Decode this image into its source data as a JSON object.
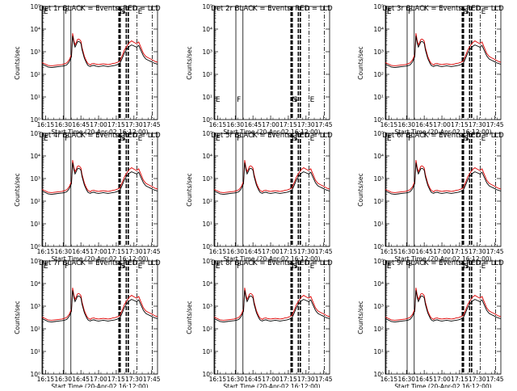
{
  "chart_data": {
    "type": "line",
    "panels": [
      {
        "title": "Det 1r BLACK = Events, RED = LLD",
        "shows_data": true
      },
      {
        "title": "Det 2r BLACK = Events, RED = LLD",
        "shows_data": false
      },
      {
        "title": "Det 3r BLACK = Events, RED = LLD",
        "shows_data": true
      },
      {
        "title": "Det 4r BLACK = Events, RED = LLD",
        "shows_data": true
      },
      {
        "title": "Det 5r BLACK = Events, RED = LLD",
        "shows_data": true
      },
      {
        "title": "Det 6r BLACK = Events, RED = LLD",
        "shows_data": true
      },
      {
        "title": "Det 7r BLACK = Events, RED = LLD",
        "shows_data": true
      },
      {
        "title": "Det 8r BLACK = Events, RED = LLD",
        "shows_data": true
      },
      {
        "title": "Det 9r BLACK = Events, RED = LLD",
        "shows_data": true
      }
    ],
    "xlabel": "Start Time (20-Apr-02 16:12:00)",
    "ylabel": "Counts/sec",
    "x_unit": "minutes after 16:12",
    "xlim": [
      0,
      98
    ],
    "x_ticks": [
      {
        "label": "16:15",
        "t": 3
      },
      {
        "label": "16:30",
        "t": 18
      },
      {
        "label": "16:45",
        "t": 33
      },
      {
        "label": "17:00",
        "t": 48
      },
      {
        "label": "17:15",
        "t": 63
      },
      {
        "label": "17:30",
        "t": 78
      },
      {
        "label": "17:45",
        "t": 93
      }
    ],
    "y_scale": "log",
    "ylim": [
      1,
      100000
    ],
    "y_ticks": [
      {
        "label": "10⁰",
        "v": 1
      },
      {
        "label": "10¹",
        "v": 10
      },
      {
        "label": "10²",
        "v": 100
      },
      {
        "label": "10³",
        "v": 1000
      },
      {
        "label": "10⁴",
        "v": 10000
      },
      {
        "label": "10⁵",
        "v": 100000
      }
    ],
    "colors": {
      "events": "#000000",
      "lld": "#dd0000"
    },
    "vertical_lines": [
      {
        "t": 0.6,
        "style": "solid",
        "label": "E"
      },
      {
        "t": 18.5,
        "style": "solid",
        "label": "F"
      },
      {
        "t": 24.5,
        "style": "solid",
        "label": ""
      },
      {
        "t": 65.3,
        "style": "dashed",
        "label": "N"
      },
      {
        "t": 66.3,
        "style": "dashed",
        "label": "S"
      },
      {
        "t": 71.5,
        "style": "dashed",
        "label": ""
      },
      {
        "t": 73.2,
        "style": "dashed",
        "label": ""
      },
      {
        "t": 80.6,
        "style": "dashdot",
        "label": "E"
      },
      {
        "t": 93.5,
        "style": "dashdot",
        "label": ""
      }
    ],
    "series": [
      {
        "name": "Events",
        "x": [
          0,
          3,
          5,
          8,
          11,
          14,
          17,
          19,
          21,
          23,
          25,
          26,
          27,
          28,
          29,
          30,
          31,
          32,
          33,
          34,
          36,
          38,
          39,
          40,
          41,
          42,
          44,
          46,
          48,
          50,
          52,
          54,
          56,
          58,
          60,
          62,
          64,
          66,
          68,
          70,
          72,
          74,
          76,
          78,
          80,
          81,
          82,
          84,
          86,
          88,
          90,
          92,
          94,
          96,
          98
        ],
        "y": [
          280,
          240,
          210,
          200,
          210,
          220,
          230,
          240,
          260,
          350,
          600,
          5000,
          2500,
          1600,
          2000,
          2700,
          2800,
          2700,
          2300,
          1200,
          500,
          300,
          250,
          230,
          220,
          240,
          250,
          230,
          220,
          230,
          240,
          230,
          220,
          230,
          240,
          250,
          270,
          300,
          500,
          900,
          1300,
          1700,
          2000,
          1800,
          1600,
          1700,
          1900,
          1100,
          650,
          480,
          420,
          380,
          330,
          300,
          280
        ]
      },
      {
        "name": "LLD",
        "x": [
          0,
          3,
          5,
          8,
          11,
          14,
          17,
          19,
          21,
          23,
          25,
          26,
          27,
          28,
          29,
          30,
          31,
          32,
          33,
          34,
          36,
          38,
          39,
          40,
          41,
          42,
          44,
          46,
          48,
          50,
          52,
          54,
          56,
          58,
          60,
          62,
          64,
          66,
          68,
          70,
          72,
          74,
          76,
          78,
          80,
          81,
          82,
          84,
          86,
          88,
          90,
          92,
          94,
          96,
          98
        ],
        "y": [
          330,
          280,
          250,
          240,
          250,
          260,
          270,
          290,
          320,
          430,
          750,
          6500,
          3200,
          2000,
          2500,
          3400,
          3600,
          3400,
          2900,
          1500,
          620,
          360,
          300,
          280,
          260,
          290,
          300,
          280,
          270,
          280,
          290,
          280,
          270,
          280,
          300,
          310,
          340,
          380,
          650,
          1200,
          1800,
          2500,
          3000,
          2600,
          2300,
          2400,
          2700,
          1500,
          850,
          620,
          540,
          480,
          420,
          370,
          340
        ]
      }
    ]
  }
}
